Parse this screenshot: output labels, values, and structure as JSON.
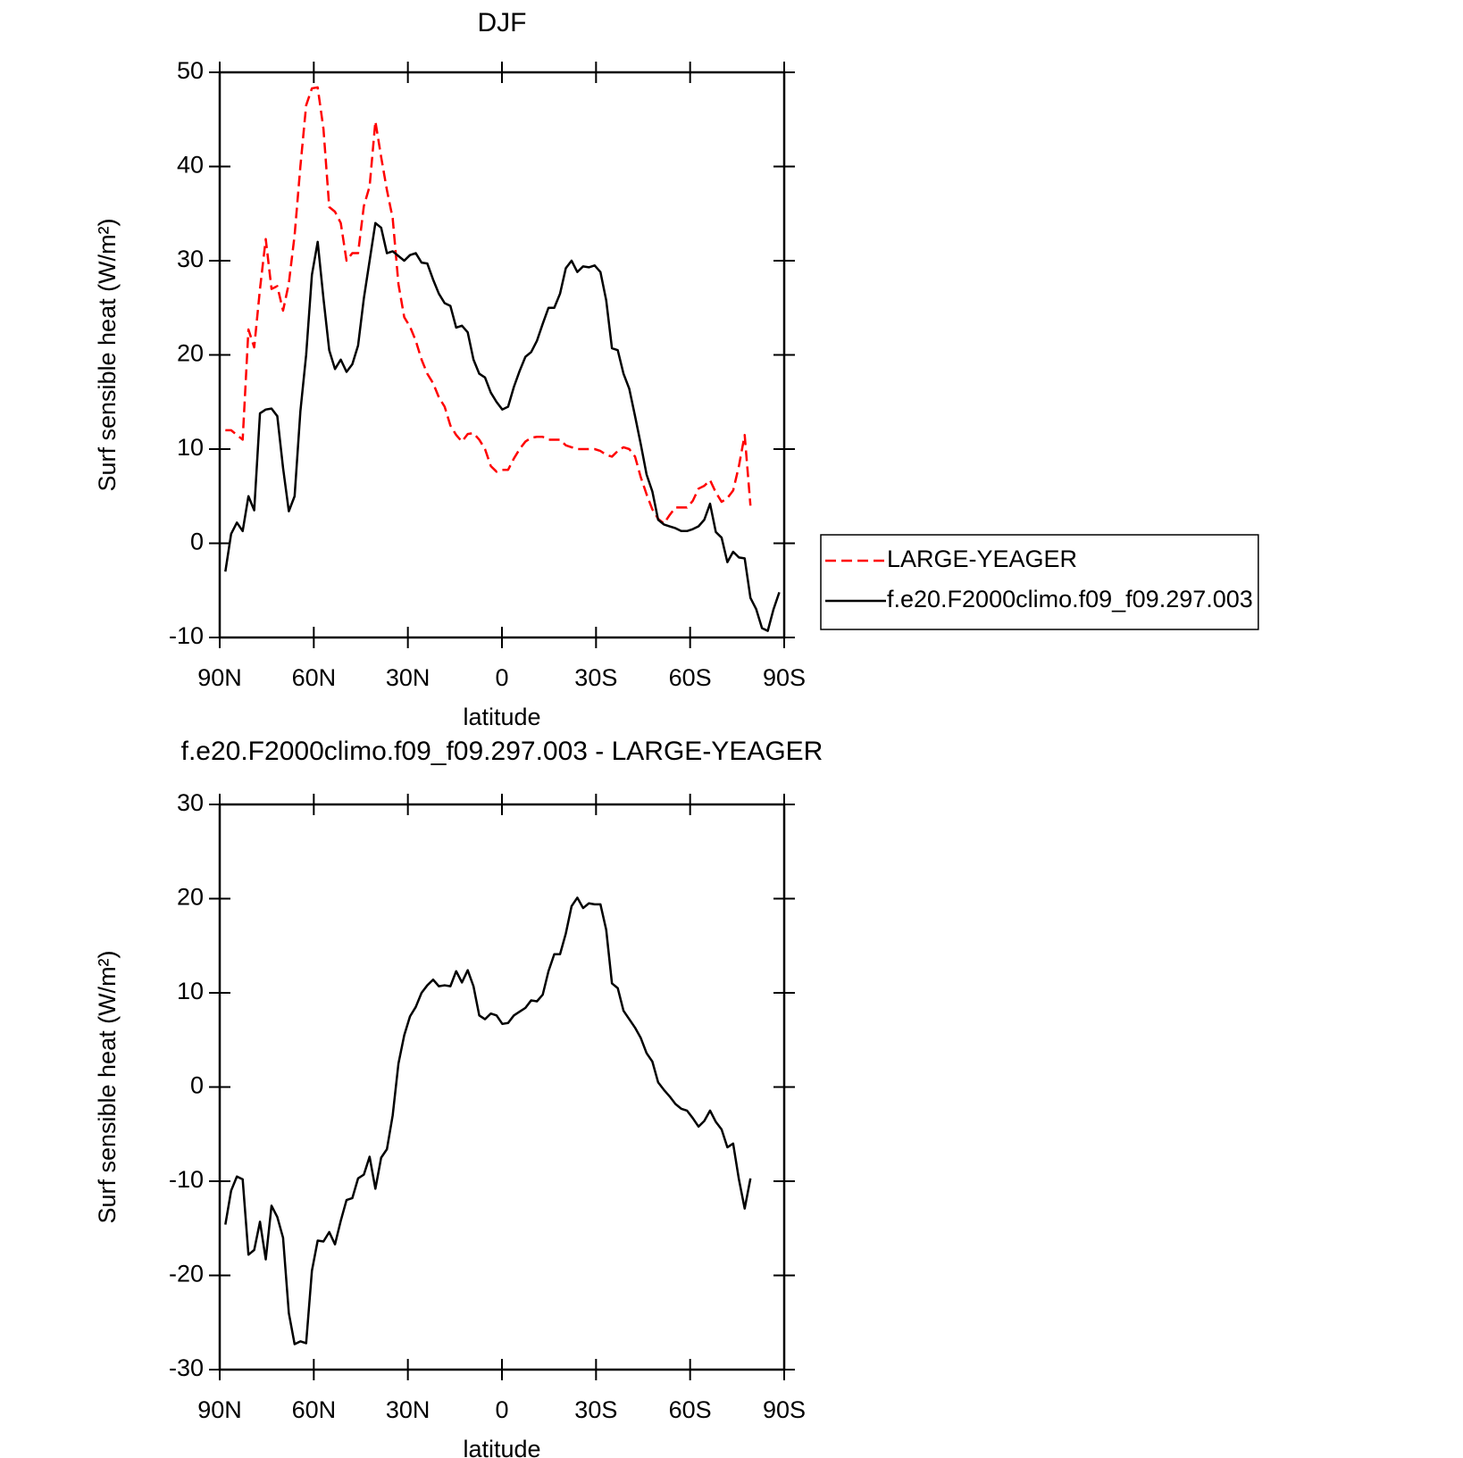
{
  "chart_data": [
    {
      "type": "line",
      "title": "DJF",
      "xlabel": "latitude",
      "ylabel": "Surf sensible heat (W/m²)",
      "xlim": [
        90,
        -90
      ],
      "xticks": [
        {
          "value": 90,
          "label": "90N"
        },
        {
          "value": 60,
          "label": "60N"
        },
        {
          "value": 30,
          "label": "30N"
        },
        0,
        {
          "value": -30,
          "label": "30S"
        },
        {
          "value": -60,
          "label": "60S"
        },
        {
          "value": -90,
          "label": "90S"
        }
      ],
      "ylim": [
        -10,
        50
      ],
      "yticks": [
        -10,
        0,
        10,
        20,
        30,
        40,
        50
      ],
      "legend": "right",
      "x": [
        88.2,
        86.36,
        84.52,
        82.68,
        80.84,
        79,
        77.16,
        75.32,
        73.48,
        71.64,
        69.8,
        67.96,
        66.12,
        64.28,
        62.44,
        60.6,
        58.76,
        56.92,
        55.08,
        53.24,
        51.4,
        49.56,
        47.72,
        45.88,
        44.04,
        42.2,
        40.36,
        38.52,
        36.68,
        34.84,
        33,
        31.16,
        29.32,
        27.48,
        25.64,
        23.8,
        21.96,
        20.12,
        18.28,
        16.44,
        14.6,
        12.76,
        10.92,
        9.08,
        7.24,
        5.4,
        3.56,
        1.72,
        -0.12,
        -1.96,
        -3.8,
        -5.64,
        -7.48,
        -9.32,
        -11.16,
        -13,
        -14.84,
        -16.68,
        -18.52,
        -20.36,
        -22.2,
        -24.04,
        -25.88,
        -27.72,
        -29.56,
        -31.4,
        -33.24,
        -35.08,
        -36.92,
        -38.76,
        -40.6,
        -42.44,
        -44.28,
        -46.12,
        -47.96,
        -49.8,
        -51.64,
        -53.48,
        -55.32,
        -57.16,
        -59,
        -60.84,
        -62.68,
        -64.52,
        -66.36,
        -68.2,
        -70.04,
        -71.88,
        -73.72,
        -75.56,
        -77.4,
        -79.24,
        -81.08,
        -82.92,
        -84.76,
        -86.6,
        -88.44
      ],
      "series": [
        {
          "name": "LARGE-YEAGER",
          "color": "#ff0000",
          "dashed": true,
          "values": [
            12,
            12,
            11.5,
            11,
            22.7,
            20.8,
            27,
            32.3,
            27,
            27.3,
            24.7,
            27.6,
            32.7,
            40,
            46.5,
            48.3,
            48.4,
            44,
            35.7,
            35.2,
            34,
            30,
            30.8,
            30.8,
            35.8,
            37.9,
            44.8,
            41,
            37.5,
            34.5,
            27.5,
            24,
            23,
            21.5,
            19.5,
            18,
            17,
            15.5,
            14.5,
            12.5,
            11.5,
            10.8,
            11.6,
            11.7,
            11,
            10,
            8.2,
            7.6,
            7.8,
            7.8,
            9,
            10,
            10.8,
            11.2,
            11.3,
            11.3,
            11,
            11,
            11,
            10.4,
            10.2,
            10,
            10,
            10,
            10,
            9.8,
            9.4,
            9.2,
            9.8,
            10.2,
            10,
            9.2,
            7,
            5.2,
            3.6,
            2.6,
            2.1,
            3,
            3.8,
            3.8,
            3.8,
            4.5,
            5.8,
            6.1,
            6.7,
            5.4,
            4.4,
            4.8,
            5.6,
            8.2,
            11.5,
            4,
            null,
            null,
            null,
            null,
            null
          ]
        },
        {
          "name": "f.e20.F2000climo.f09_f09.297.003",
          "color": "#000000",
          "dashed": false,
          "values": [
            -3,
            1,
            2.2,
            1.3,
            5,
            3.5,
            13.8,
            14.2,
            14.3,
            13.5,
            8,
            3.4,
            5,
            14,
            20,
            28.5,
            32,
            26,
            20.5,
            18.5,
            19.5,
            18.2,
            19,
            21,
            26,
            30,
            34,
            33.5,
            30.8,
            31,
            30.5,
            30,
            30.6,
            30.8,
            29.8,
            29.7,
            28,
            26.5,
            25.5,
            25.2,
            22.9,
            23.1,
            22.4,
            19.5,
            18,
            17.6,
            16,
            15,
            14.2,
            14.5,
            16.6,
            18.3,
            19.8,
            20.3,
            21.5,
            23.3,
            25,
            25,
            26.5,
            29.2,
            30,
            28.8,
            29.4,
            29.3,
            29.5,
            28.8,
            25.8,
            20.7,
            20.5,
            18,
            16.4,
            13.5,
            10.5,
            7.3,
            5.5,
            2.5,
            2,
            1.8,
            1.6,
            1.3,
            1.3,
            1.5,
            1.8,
            2.5,
            4.2,
            1.2,
            0.6,
            -2,
            -0.9,
            -1.5,
            -1.6,
            -5.8,
            -7,
            -9,
            -9.3,
            -7,
            -5.2
          ]
        }
      ]
    },
    {
      "type": "line",
      "title": "f.e20.F2000climo.f09_f09.297.003 - LARGE-YEAGER",
      "xlabel": "latitude",
      "ylabel": "Surf sensible heat (W/m²)",
      "xlim": [
        90,
        -90
      ],
      "xticks": [
        {
          "value": 90,
          "label": "90N"
        },
        {
          "value": 60,
          "label": "60N"
        },
        {
          "value": 30,
          "label": "30N"
        },
        0,
        {
          "value": -30,
          "label": "30S"
        },
        {
          "value": -60,
          "label": "60S"
        },
        {
          "value": -90,
          "label": "90S"
        }
      ],
      "ylim": [
        -30,
        30
      ],
      "yticks": [
        -30,
        -20,
        -10,
        0,
        10,
        20,
        30
      ],
      "x": [
        88.2,
        86.36,
        84.52,
        82.68,
        80.84,
        79,
        77.16,
        75.32,
        73.48,
        71.64,
        69.8,
        67.96,
        66.12,
        64.28,
        62.44,
        60.6,
        58.76,
        56.92,
        55.08,
        53.24,
        51.4,
        49.56,
        47.72,
        45.88,
        44.04,
        42.2,
        40.36,
        38.52,
        36.68,
        34.84,
        33,
        31.16,
        29.32,
        27.48,
        25.64,
        23.8,
        21.96,
        20.12,
        18.28,
        16.44,
        14.6,
        12.76,
        10.92,
        9.08,
        7.24,
        5.4,
        3.56,
        1.72,
        -0.12,
        -1.96,
        -3.8,
        -5.64,
        -7.48,
        -9.32,
        -11.16,
        -13,
        -14.84,
        -16.68,
        -18.52,
        -20.36,
        -22.2,
        -24.04,
        -25.88,
        -27.72,
        -29.56,
        -31.4,
        -33.24,
        -35.08,
        -36.92,
        -38.76,
        -40.6,
        -42.44,
        -44.28,
        -46.12,
        -47.96,
        -49.8,
        -51.64,
        -53.48,
        -55.32,
        -57.16,
        -59,
        -60.84,
        -62.68,
        -64.52,
        -66.36,
        -68.2,
        -70.04,
        -71.88,
        -73.72,
        -75.56,
        -77.4,
        -79.24
      ],
      "series": [
        {
          "name": "f.e20.F2000climo.f09_f09.297.003 - LARGE-YEAGER",
          "color": "#000000",
          "dashed": false,
          "values": [
            -14.6,
            -11,
            -9.5,
            -9.8,
            -17.8,
            -17.3,
            -14.3,
            -18.3,
            -12.6,
            -13.8,
            -16,
            -24,
            -27.3,
            -27,
            -27.2,
            -19.5,
            -16.3,
            -16.4,
            -15.4,
            -16.7,
            -14.2,
            -12,
            -11.8,
            -9.7,
            -9.3,
            -7.4,
            -10.8,
            -7.5,
            -6.6,
            -3,
            2.5,
            5.5,
            7.5,
            8.5,
            10,
            10.8,
            11.4,
            10.7,
            10.8,
            10.7,
            12.3,
            11.1,
            12.4,
            10.7,
            7.6,
            7.2,
            7.8,
            7.6,
            6.7,
            6.8,
            7.6,
            8,
            8.4,
            9.2,
            9.1,
            9.8,
            12.3,
            14.1,
            14.1,
            16.3,
            19.2,
            20.1,
            19,
            19.5,
            19.4,
            19.4,
            16.7,
            11,
            10.5,
            8.1,
            7.2,
            6.3,
            5.2,
            3.6,
            2.7,
            0.5,
            -0.3,
            -1,
            -1.8,
            -2.3,
            -2.5,
            -3.3,
            -4.2,
            -3.6,
            -2.5,
            -3.7,
            -4.5,
            -6.4,
            -6,
            -9.8,
            -12.9,
            -9.7
          ]
        }
      ]
    }
  ]
}
